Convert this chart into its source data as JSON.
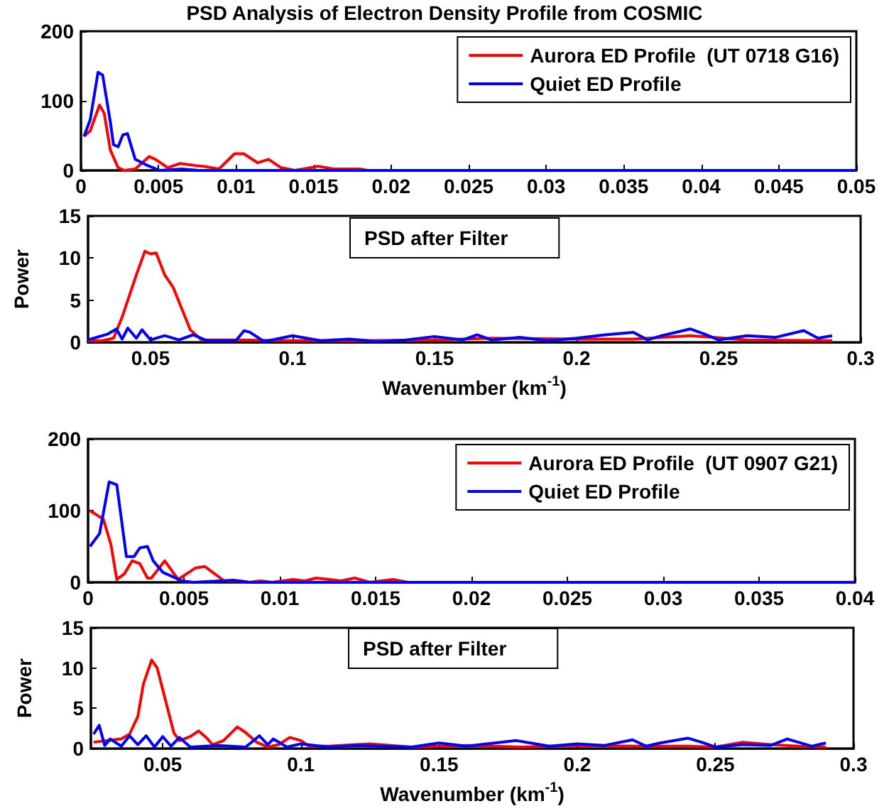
{
  "chart_data": [
    {
      "type": "line",
      "title": "PSD Analysis of Electron Density Profile from COSMIC",
      "xlim": [
        0,
        0.05
      ],
      "xticks": [
        0,
        0.005,
        0.01,
        0.015,
        0.02,
        0.025,
        0.03,
        0.035,
        0.04,
        0.045,
        0.05
      ],
      "ylim": [
        0,
        200
      ],
      "yticks": [
        0,
        100,
        200
      ],
      "grid": false,
      "legend": "top right",
      "marker": "none",
      "series": [
        {
          "name": "Aurora ED Profile  (UT 0718 G16)",
          "color": "#ff0000",
          "x": [
            0.0002,
            0.0006,
            0.0012,
            0.0015,
            0.0019,
            0.0024,
            0.0028,
            0.0035,
            0.0044,
            0.0048,
            0.0056,
            0.0064,
            0.0074,
            0.0079,
            0.0089,
            0.0099,
            0.0105,
            0.0114,
            0.0121,
            0.0129,
            0.0138,
            0.0153,
            0.0163,
            0.018,
            0.0185,
            0.025
          ],
          "values": [
            49,
            57,
            94,
            82,
            29,
            4,
            0,
            2,
            20,
            16,
            4,
            10,
            7,
            6,
            2,
            24,
            24,
            11,
            16,
            4,
            0,
            6,
            2,
            2,
            0,
            0
          ]
        },
        {
          "name": "Quiet ED Profile",
          "color": "#0000ff",
          "x": [
            0.0002,
            0.0006,
            0.0011,
            0.0014,
            0.0019,
            0.0021,
            0.0024,
            0.0027,
            0.003,
            0.0035,
            0.0043,
            0.0051,
            0.0065,
            0.0076,
            0.01,
            0.02,
            0.03,
            0.04,
            0.05
          ],
          "values": [
            49,
            73,
            141,
            137,
            69,
            37,
            34,
            51,
            53,
            16,
            7,
            0,
            2,
            0,
            0,
            0,
            0,
            0,
            0
          ]
        }
      ]
    },
    {
      "type": "line",
      "xlabel": "Wavenumber (km$^{-1}$)",
      "ylabel": "Power",
      "annotations": [
        "PSD after Filter"
      ],
      "xlim": [
        0.028,
        0.3
      ],
      "xticks": [
        0.05,
        0.1,
        0.15,
        0.2,
        0.25,
        0.3
      ],
      "ylim": [
        0,
        15
      ],
      "yticks": [
        0,
        5,
        10,
        15
      ],
      "grid": false,
      "marker": "none",
      "series": [
        {
          "color": "#ff0000",
          "x": [
            0.028,
            0.033,
            0.037,
            0.04,
            0.045,
            0.048,
            0.05,
            0.052,
            0.055,
            0.058,
            0.061,
            0.064,
            0.068,
            0.08,
            0.1,
            0.12,
            0.15,
            0.17,
            0.2,
            0.22,
            0.24,
            0.26,
            0.29
          ],
          "values": [
            0.2,
            0.2,
            0.5,
            3,
            8,
            10.8,
            10.5,
            10.6,
            8,
            6.5,
            4,
            1.5,
            0.3,
            0.3,
            0.2,
            0.2,
            0.3,
            0.5,
            0.4,
            0.4,
            0.8,
            0.3,
            0.2
          ]
        },
        {
          "color": "#0000ff",
          "x": [
            0.028,
            0.03,
            0.035,
            0.038,
            0.04,
            0.042,
            0.045,
            0.047,
            0.05,
            0.055,
            0.06,
            0.065,
            0.07,
            0.08,
            0.083,
            0.085,
            0.09,
            0.1,
            0.11,
            0.12,
            0.13,
            0.14,
            0.15,
            0.16,
            0.165,
            0.17,
            0.18,
            0.19,
            0.2,
            0.21,
            0.22,
            0.225,
            0.23,
            0.24,
            0.245,
            0.25,
            0.26,
            0.27,
            0.28,
            0.285,
            0.29
          ],
          "values": [
            0.3,
            0.5,
            1.0,
            1.6,
            0.4,
            1.7,
            0.5,
            1.5,
            0.3,
            0.8,
            0.3,
            0.9,
            0.2,
            0.2,
            1.4,
            1.2,
            0.1,
            0.8,
            0.2,
            0.4,
            0.1,
            0.3,
            0.7,
            0.3,
            0.9,
            0.3,
            0.6,
            0.2,
            0.5,
            0.9,
            1.2,
            0.3,
            0.8,
            1.6,
            1.0,
            0.3,
            0.8,
            0.6,
            1.4,
            0.5,
            0.8
          ]
        }
      ]
    },
    {
      "type": "line",
      "xlim": [
        0,
        0.04
      ],
      "xticks": [
        0,
        0.005,
        0.01,
        0.015,
        0.02,
        0.025,
        0.03,
        0.035,
        0.04
      ],
      "ylim": [
        0,
        200
      ],
      "yticks": [
        0,
        100,
        200
      ],
      "grid": false,
      "legend": "top right",
      "marker": "none",
      "series": [
        {
          "name": "Aurora ED Profile  (UT 0907 G21)",
          "color": "#ff0000",
          "x": [
            0.0001,
            0.0008,
            0.0012,
            0.0015,
            0.0019,
            0.0023,
            0.0027,
            0.0031,
            0.0033,
            0.004,
            0.0047,
            0.0056,
            0.0061,
            0.0065,
            0.0071,
            0.0079,
            0.0084,
            0.009,
            0.0096,
            0.0107,
            0.0113,
            0.0119,
            0.0126,
            0.0132,
            0.0139,
            0.0147,
            0.0159,
            0.0167,
            0.02
          ],
          "values": [
            100,
            88,
            52,
            4,
            12,
            30,
            26,
            6,
            6,
            30,
            4,
            20,
            22,
            14,
            2,
            2,
            0,
            2,
            0,
            4,
            2,
            6,
            4,
            2,
            6,
            0,
            4,
            0,
            0
          ]
        },
        {
          "name": "Quiet ED Profile",
          "color": "#0000ff",
          "x": [
            0.0001,
            0.0006,
            0.0011,
            0.0015,
            0.002,
            0.0024,
            0.0027,
            0.0031,
            0.0034,
            0.0039,
            0.0044,
            0.0049,
            0.0055,
            0.0076,
            0.0084,
            0.01,
            0.02,
            0.03,
            0.04
          ],
          "values": [
            50,
            68,
            140,
            136,
            36,
            36,
            48,
            50,
            30,
            14,
            8,
            2,
            0,
            3,
            0,
            0,
            0,
            0,
            0
          ]
        }
      ]
    },
    {
      "type": "line",
      "xlabel": "Wavenumber (km$^{-1}$)",
      "ylabel": "Power",
      "annotations": [
        "PSD after Filter"
      ],
      "xlim": [
        0.024,
        0.3
      ],
      "xticks": [
        0.05,
        0.1,
        0.15,
        0.2,
        0.25,
        0.3
      ],
      "ylim": [
        0,
        15
      ],
      "yticks": [
        0,
        5,
        10,
        15
      ],
      "grid": false,
      "marker": "none",
      "series": [
        {
          "color": "#ff0000",
          "x": [
            0.025,
            0.03,
            0.035,
            0.038,
            0.041,
            0.043,
            0.046,
            0.048,
            0.051,
            0.054,
            0.056,
            0.06,
            0.063,
            0.066,
            0.068,
            0.072,
            0.077,
            0.08,
            0.084,
            0.088,
            0.092,
            0.096,
            0.1,
            0.103,
            0.11,
            0.125,
            0.14,
            0.16,
            0.18,
            0.2,
            0.22,
            0.24,
            0.25,
            0.26,
            0.27,
            0.28,
            0.29
          ],
          "values": [
            0.8,
            1.0,
            1.2,
            1.8,
            4,
            8,
            11,
            10,
            6,
            2,
            1,
            1.5,
            2.2,
            1.3,
            0.5,
            1.0,
            2.7,
            2.0,
            0.8,
            0.2,
            0.5,
            1.4,
            1.0,
            0.3,
            0.3,
            0.6,
            0.2,
            0.4,
            0.2,
            0.4,
            0.3,
            0.3,
            0.2,
            0.8,
            0.5,
            0.3,
            0.2
          ]
        },
        {
          "color": "#0000ff",
          "x": [
            0.025,
            0.027,
            0.029,
            0.031,
            0.035,
            0.038,
            0.041,
            0.044,
            0.047,
            0.05,
            0.053,
            0.056,
            0.06,
            0.07,
            0.08,
            0.085,
            0.088,
            0.09,
            0.095,
            0.1,
            0.11,
            0.12,
            0.14,
            0.15,
            0.16,
            0.178,
            0.19,
            0.2,
            0.21,
            0.22,
            0.225,
            0.23,
            0.24,
            0.245,
            0.25,
            0.26,
            0.27,
            0.276,
            0.28,
            0.285,
            0.29
          ],
          "values": [
            1.8,
            2.9,
            0.4,
            1.2,
            0.3,
            1.6,
            0.5,
            1.6,
            0.2,
            1.5,
            0.3,
            1.4,
            0.2,
            0.4,
            0.2,
            1.6,
            0.5,
            1.2,
            0.2,
            0.6,
            0.2,
            0.4,
            0.2,
            0.7,
            0.3,
            1.0,
            0.3,
            0.6,
            0.4,
            1.1,
            0.3,
            0.7,
            1.3,
            0.8,
            0.2,
            0.5,
            0.4,
            1.2,
            0.8,
            0.3,
            0.7
          ]
        }
      ]
    }
  ]
}
